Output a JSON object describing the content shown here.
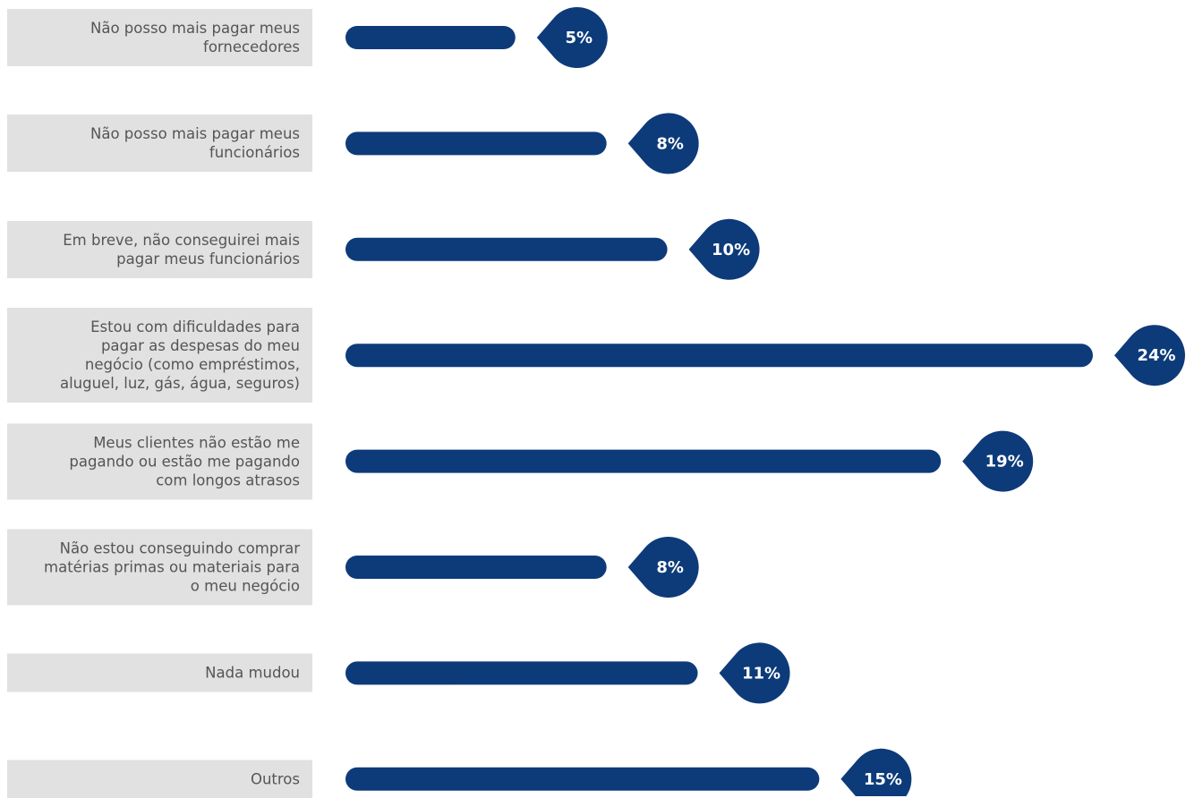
{
  "chart_data": {
    "type": "bar",
    "orientation": "horizontal",
    "color": "#0d3b7a",
    "categories": [
      "Não posso mais pagar meus fornecedores",
      "Não posso mais pagar meus funcionários",
      "Em breve, não conseguirei mais pagar meus funcionários",
      "Estou com dificuldades para pagar as despesas do meu negócio (como empréstimos, aluguel, luz, gás, água, seguros)",
      "Meus clientes não estão me pagando ou estão me pagando com longos atrasos",
      "Não estou conseguindo comprar matérias primas ou materiais para o meu negócio",
      "Nada mudou",
      "Outros"
    ],
    "values": [
      5,
      8,
      10,
      24,
      19,
      8,
      11,
      15
    ],
    "value_labels": [
      "5%",
      "8%",
      "10%",
      "24%",
      "19%",
      "8%",
      "11%",
      "15%"
    ]
  }
}
